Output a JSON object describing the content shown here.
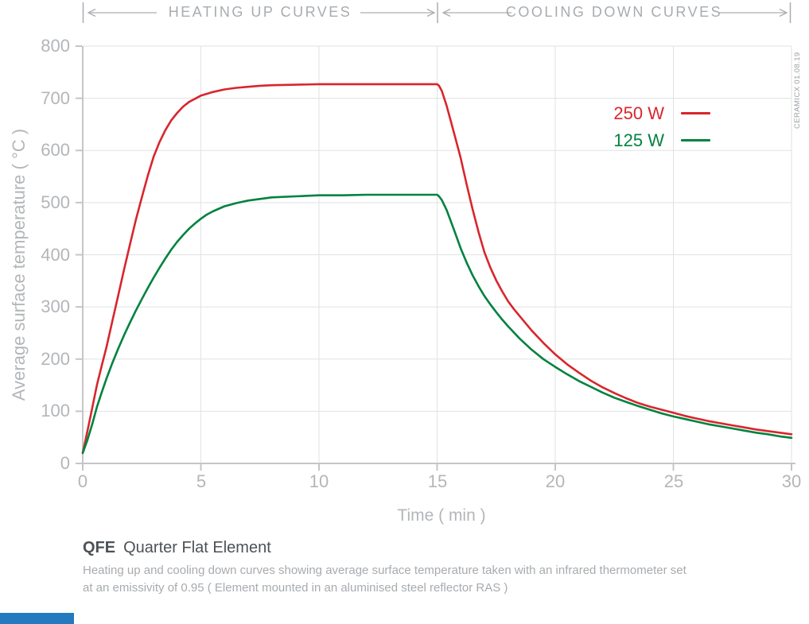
{
  "header": {
    "heating_label": "HEATING UP CURVES",
    "cooling_label": "COOLING DOWN CURVES"
  },
  "watermark": "CERAMICX 01.08.19",
  "legend": {
    "items": [
      {
        "label": "250 W",
        "color": "#d8262c"
      },
      {
        "label": "125 W",
        "color": "#00823f"
      }
    ]
  },
  "chart_data": {
    "type": "line",
    "xlabel": "Time ( min )",
    "ylabel": "Average surface temperature ( °C )",
    "xlim": [
      0,
      30
    ],
    "ylim": [
      0,
      800
    ],
    "xticks": [
      0,
      5,
      10,
      15,
      20,
      25,
      30
    ],
    "yticks": [
      0,
      100,
      200,
      300,
      400,
      500,
      600,
      700,
      800
    ],
    "grid": true,
    "legend_position": "upper right",
    "regions": [
      {
        "label": "HEATING UP CURVES",
        "x_range": [
          0,
          15
        ]
      },
      {
        "label": "COOLING DOWN CURVES",
        "x_range": [
          15,
          30
        ]
      }
    ],
    "series": [
      {
        "name": "250 W",
        "color": "#d8262c",
        "points": [
          [
            0,
            20
          ],
          [
            0.2,
            62
          ],
          [
            0.4,
            106
          ],
          [
            0.6,
            150
          ],
          [
            0.8,
            187
          ],
          [
            1,
            222
          ],
          [
            1.25,
            272
          ],
          [
            1.5,
            322
          ],
          [
            1.75,
            372
          ],
          [
            2,
            420
          ],
          [
            2.25,
            467
          ],
          [
            2.5,
            510
          ],
          [
            2.75,
            551
          ],
          [
            3,
            588
          ],
          [
            3.25,
            616
          ],
          [
            3.5,
            639
          ],
          [
            3.75,
            658
          ],
          [
            4,
            672
          ],
          [
            4.25,
            684
          ],
          [
            4.5,
            693
          ],
          [
            4.75,
            699
          ],
          [
            5,
            705
          ],
          [
            5.5,
            712
          ],
          [
            6,
            717
          ],
          [
            6.5,
            720
          ],
          [
            7,
            722
          ],
          [
            7.5,
            724
          ],
          [
            8,
            725
          ],
          [
            9,
            726
          ],
          [
            10,
            727
          ],
          [
            11,
            727
          ],
          [
            12,
            727
          ],
          [
            13,
            727
          ],
          [
            14,
            727
          ],
          [
            15,
            727
          ],
          [
            15.08,
            724
          ],
          [
            15.2,
            714
          ],
          [
            15.4,
            686
          ],
          [
            15.6,
            653
          ],
          [
            15.8,
            619
          ],
          [
            16,
            585
          ],
          [
            16.25,
            535
          ],
          [
            16.5,
            488
          ],
          [
            16.75,
            444
          ],
          [
            17,
            405
          ],
          [
            17.25,
            376
          ],
          [
            17.5,
            351
          ],
          [
            17.75,
            330
          ],
          [
            18,
            311
          ],
          [
            18.25,
            296
          ],
          [
            18.5,
            282
          ],
          [
            19,
            255
          ],
          [
            19.5,
            231
          ],
          [
            20,
            209
          ],
          [
            20.5,
            190
          ],
          [
            21,
            174
          ],
          [
            21.5,
            159
          ],
          [
            22,
            146
          ],
          [
            22.5,
            135
          ],
          [
            23,
            125
          ],
          [
            23.5,
            116
          ],
          [
            24,
            109
          ],
          [
            24.5,
            103
          ],
          [
            25,
            97
          ],
          [
            25.5,
            91
          ],
          [
            26,
            86
          ],
          [
            26.5,
            81
          ],
          [
            27,
            77
          ],
          [
            27.5,
            73
          ],
          [
            28,
            69
          ],
          [
            28.5,
            65
          ],
          [
            29,
            62
          ],
          [
            29.5,
            59
          ],
          [
            30,
            56
          ]
        ]
      },
      {
        "name": "125 W",
        "color": "#00823f",
        "points": [
          [
            0,
            20
          ],
          [
            0.2,
            45
          ],
          [
            0.4,
            75
          ],
          [
            0.6,
            108
          ],
          [
            0.8,
            136
          ],
          [
            1,
            162
          ],
          [
            1.25,
            192
          ],
          [
            1.5,
            220
          ],
          [
            1.75,
            246
          ],
          [
            2,
            270
          ],
          [
            2.25,
            293
          ],
          [
            2.5,
            315
          ],
          [
            2.75,
            336
          ],
          [
            3,
            356
          ],
          [
            3.25,
            375
          ],
          [
            3.5,
            393
          ],
          [
            3.75,
            410
          ],
          [
            4,
            425
          ],
          [
            4.25,
            438
          ],
          [
            4.5,
            450
          ],
          [
            4.75,
            460
          ],
          [
            5,
            469
          ],
          [
            5.25,
            477
          ],
          [
            5.5,
            483
          ],
          [
            6,
            493
          ],
          [
            6.5,
            499
          ],
          [
            7,
            504
          ],
          [
            7.5,
            507
          ],
          [
            8,
            510
          ],
          [
            9,
            512
          ],
          [
            10,
            514
          ],
          [
            11,
            514
          ],
          [
            12,
            515
          ],
          [
            13,
            515
          ],
          [
            14,
            515
          ],
          [
            15,
            515
          ],
          [
            15.08,
            512
          ],
          [
            15.2,
            505
          ],
          [
            15.4,
            486
          ],
          [
            15.6,
            462
          ],
          [
            15.8,
            437
          ],
          [
            16,
            412
          ],
          [
            16.25,
            385
          ],
          [
            16.5,
            361
          ],
          [
            16.75,
            340
          ],
          [
            17,
            321
          ],
          [
            17.25,
            305
          ],
          [
            17.5,
            290
          ],
          [
            17.75,
            276
          ],
          [
            18,
            263
          ],
          [
            18.5,
            239
          ],
          [
            19,
            218
          ],
          [
            19.5,
            200
          ],
          [
            20,
            185
          ],
          [
            20.5,
            171
          ],
          [
            21,
            158
          ],
          [
            21.5,
            147
          ],
          [
            22,
            136
          ],
          [
            22.5,
            126
          ],
          [
            23,
            118
          ],
          [
            23.5,
            110
          ],
          [
            24,
            103
          ],
          [
            24.5,
            96
          ],
          [
            25,
            90
          ],
          [
            25.5,
            85
          ],
          [
            26,
            80
          ],
          [
            26.5,
            75
          ],
          [
            27,
            71
          ],
          [
            27.5,
            67
          ],
          [
            28,
            63
          ],
          [
            28.5,
            59
          ],
          [
            29,
            56
          ],
          [
            29.5,
            52
          ],
          [
            30,
            49
          ]
        ]
      }
    ]
  },
  "footer": {
    "product_code": "QFE",
    "product_name": "Quarter Flat Element",
    "description_line1": "Heating up and cooling down curves showing average surface temperature taken with an infrared thermometer set",
    "description_line2": "at an emissivity of 0.95  ( Element mounted in an aluminised steel reflector RAS )",
    "accent_bar_color": "#2579be"
  },
  "colors": {
    "grid": "#e0e2e3",
    "axis": "#c3c6c8",
    "header_marks": "#aaadb1",
    "tick_text": "#b3b6b9",
    "header_text": "#a8acb0",
    "title_text": "#4d5156",
    "description_text": "#a7abaf"
  }
}
